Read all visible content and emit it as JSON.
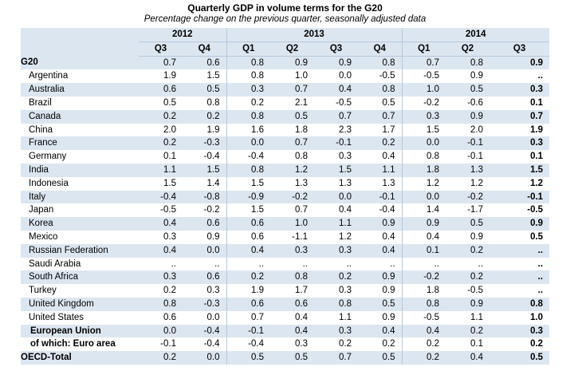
{
  "title": "Quarterly GDP in volume terms for the G20",
  "subtitle": "Percentage change on the previous quarter, seasonally adjusted data",
  "years": [
    "2012",
    "2013",
    "2014"
  ],
  "quarters": [
    "Q3",
    "Q4",
    "Q1",
    "Q2",
    "Q3",
    "Q4",
    "Q1",
    "Q2",
    "Q3"
  ],
  "rows": [
    {
      "label": "G20",
      "values": [
        "0.7",
        "0.6",
        "0.8",
        "0.9",
        "0.9",
        "0.8",
        "0.7",
        "0.8",
        "0.9"
      ],
      "style": "group"
    },
    {
      "label": "Argentina",
      "values": [
        "1.9",
        "1.5",
        "0.8",
        "1.0",
        "0.0",
        "-0.5",
        "-0.5",
        "0.9",
        ".."
      ]
    },
    {
      "label": "Australia",
      "values": [
        "0.6",
        "0.5",
        "0.3",
        "0.7",
        "0.4",
        "0.8",
        "1.0",
        "0.5",
        "0.3"
      ]
    },
    {
      "label": "Brazil",
      "values": [
        "0.5",
        "0.8",
        "0.2",
        "2.1",
        "-0.5",
        "0.5",
        "-0.2",
        "-0.6",
        "0.1"
      ]
    },
    {
      "label": "Canada",
      "values": [
        "0.2",
        "0.2",
        "0.8",
        "0.5",
        "0.7",
        "0.7",
        "0.3",
        "0.9",
        "0.7"
      ]
    },
    {
      "label": "China",
      "values": [
        "2.0",
        "1.9",
        "1.6",
        "1.8",
        "2.3",
        "1.7",
        "1.5",
        "2.0",
        "1.9"
      ]
    },
    {
      "label": "France",
      "values": [
        "0.2",
        "-0.3",
        "0.0",
        "0.7",
        "-0.1",
        "0.2",
        "0.0",
        "-0.1",
        "0.3"
      ]
    },
    {
      "label": "Germany",
      "values": [
        "0.1",
        "-0.4",
        "-0.4",
        "0.8",
        "0.3",
        "0.4",
        "0.8",
        "-0.1",
        "0.1"
      ]
    },
    {
      "label": "India",
      "values": [
        "1.1",
        "1.5",
        "0.8",
        "1.2",
        "1.5",
        "1.1",
        "1.8",
        "1.3",
        "1.5"
      ]
    },
    {
      "label": "Indonesia",
      "values": [
        "1.5",
        "1.4",
        "1.5",
        "1.3",
        "1.3",
        "1.3",
        "1.2",
        "1.2",
        "1.2"
      ]
    },
    {
      "label": "Italy",
      "values": [
        "-0.4",
        "-0.8",
        "-0.9",
        "-0.2",
        "0.0",
        "-0.1",
        "0.0",
        "-0.2",
        "-0.1"
      ]
    },
    {
      "label": "Japan",
      "values": [
        "-0.5",
        "-0.2",
        "1.5",
        "0.7",
        "0.4",
        "-0.4",
        "1.4",
        "-1.7",
        "-0.5"
      ]
    },
    {
      "label": "Korea",
      "values": [
        "0.4",
        "0.6",
        "0.6",
        "1.0",
        "1.1",
        "0.9",
        "0.9",
        "0.5",
        "0.9"
      ]
    },
    {
      "label": "Mexico",
      "values": [
        "0.3",
        "0.9",
        "0.6",
        "-1.1",
        "1.2",
        "0.4",
        "0.4",
        "0.9",
        "0.5"
      ]
    },
    {
      "label": "Russian Federation",
      "values": [
        "0.4",
        "0.0",
        "0.4",
        "0.3",
        "0.3",
        "0.4",
        "0.1",
        "0.2",
        ".."
      ]
    },
    {
      "label": "Saudi Arabia",
      "values": [
        "..",
        "..",
        "..",
        "..",
        "..",
        "..",
        "..",
        "..",
        ".."
      ]
    },
    {
      "label": "South Africa",
      "values": [
        "0.3",
        "0.6",
        "0.2",
        "0.8",
        "0.2",
        "0.9",
        "-0.2",
        "0.2",
        ".."
      ]
    },
    {
      "label": "Turkey",
      "values": [
        "0.2",
        "0.3",
        "1.9",
        "1.7",
        "0.3",
        "0.9",
        "1.8",
        "-0.5",
        ".."
      ]
    },
    {
      "label": "United Kingdom",
      "values": [
        "0.8",
        "-0.3",
        "0.6",
        "0.6",
        "0.8",
        "0.5",
        "0.8",
        "0.9",
        "0.8"
      ]
    },
    {
      "label": "United States",
      "values": [
        "0.6",
        "0.0",
        "0.7",
        "0.4",
        "1.1",
        "0.9",
        "-0.5",
        "1.1",
        "1.0"
      ]
    },
    {
      "label": "European Union",
      "values": [
        "0.0",
        "-0.4",
        "-0.1",
        "0.4",
        "0.3",
        "0.4",
        "0.4",
        "0.2",
        "0.3"
      ],
      "style": "eu"
    },
    {
      "label": "of which: Euro area",
      "values": [
        "-0.1",
        "-0.4",
        "-0.4",
        "0.3",
        "0.2",
        "0.2",
        "0.2",
        "0.1",
        "0.2"
      ],
      "style": "euro"
    },
    {
      "label": "OECD-Total",
      "values": [
        "0.2",
        "0.0",
        "0.5",
        "0.5",
        "0.7",
        "0.5",
        "0.2",
        "0.4",
        "0.5"
      ],
      "style": "group"
    }
  ],
  "colors": {
    "header_bg": "#dce6f1",
    "grid_line": "#b8c7da"
  }
}
